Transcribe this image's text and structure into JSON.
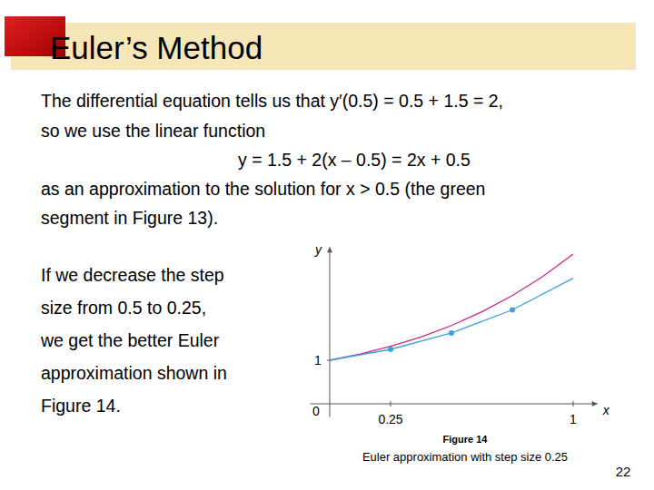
{
  "slide": {
    "title": "Euler’s Method",
    "intro_lines": [
      "The differential equation tells us that y′(0.5) = 0.5 + 1.5 = 2,",
      "so we use the linear function",
      "y = 1.5 + 2(x – 0.5) = 2x + 0.5",
      "as an approximation to the solution for x > 0.5 (the green",
      "segment in Figure 13)."
    ],
    "side_lines": [
      "If we decrease the step",
      "size from 0.5 to 0.25,",
      "we get the better Euler",
      "approximation shown in",
      "Figure 14."
    ],
    "caption_label": "Figure 14",
    "caption": "Euler approximation with step size 0.25",
    "page_number": 22
  },
  "chart_data": {
    "type": "line",
    "x_label": "x",
    "y_label": "y",
    "xlim": [
      -0.08,
      1.1
    ],
    "ylim": [
      -0.3,
      3.6
    ],
    "xticks": [
      0,
      0.25,
      1
    ],
    "yticks": [
      1
    ],
    "grid": false,
    "series": [
      {
        "color": "#cc2a7e",
        "marker": "none",
        "line_style": "solid",
        "x": [
          0,
          0.125,
          0.25,
          0.375,
          0.5,
          0.625,
          0.75,
          0.875,
          1
        ],
        "values": [
          1,
          1.141,
          1.318,
          1.535,
          1.797,
          2.111,
          2.484,
          2.923,
          3.437
        ]
      },
      {
        "color": "#3aa3d9",
        "marker": "circle",
        "line_style": "solid",
        "x": [
          0,
          0.25,
          0.5,
          0.75,
          1
        ],
        "values": [
          1,
          1.25,
          1.625,
          2.156,
          2.883
        ]
      }
    ]
  }
}
